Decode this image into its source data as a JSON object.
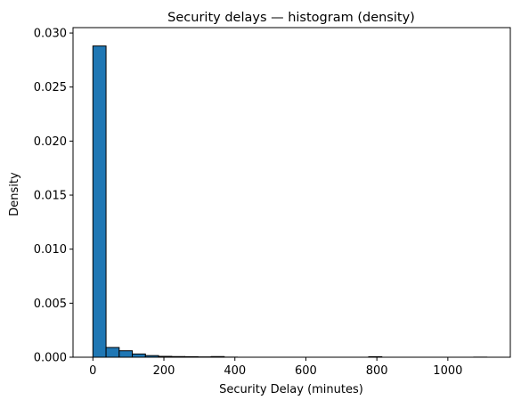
{
  "chart_data": {
    "type": "bar",
    "title": "Security delays — histogram (density)",
    "xlabel": "Security Delay (minutes)",
    "ylabel": "Density",
    "xlim": [
      -56,
      1176
    ],
    "ylim": [
      0,
      0.0305
    ],
    "xticks": [
      0,
      200,
      400,
      600,
      800,
      1000
    ],
    "yticks": [
      0.0,
      0.005,
      0.01,
      0.015,
      0.02,
      0.025,
      0.03
    ],
    "ytick_labels": [
      "0.000",
      "0.005",
      "0.010",
      "0.015",
      "0.020",
      "0.025",
      "0.030"
    ],
    "bin_width": 37,
    "bins": [
      {
        "x0": 0,
        "x1": 37,
        "density": 0.0288
      },
      {
        "x0": 37,
        "x1": 74,
        "density": 0.0009
      },
      {
        "x0": 74,
        "x1": 111,
        "density": 0.0006
      },
      {
        "x0": 111,
        "x1": 148,
        "density": 0.0003
      },
      {
        "x0": 148,
        "x1": 185,
        "density": 0.00015
      },
      {
        "x0": 185,
        "x1": 222,
        "density": 8e-05
      },
      {
        "x0": 222,
        "x1": 259,
        "density": 6e-05
      },
      {
        "x0": 259,
        "x1": 296,
        "density": 5e-05
      },
      {
        "x0": 296,
        "x1": 333,
        "density": 3e-05
      },
      {
        "x0": 333,
        "x1": 370,
        "density": 6e-05
      },
      {
        "x0": 370,
        "x1": 407,
        "density": 1e-05
      },
      {
        "x0": 777,
        "x1": 814,
        "density": 5e-05
      },
      {
        "x0": 1073,
        "x1": 1110,
        "density": 1e-05
      }
    ],
    "grid": false,
    "colors": {
      "bar_fill": "#1f77b4",
      "bar_edge": "#000000"
    }
  }
}
